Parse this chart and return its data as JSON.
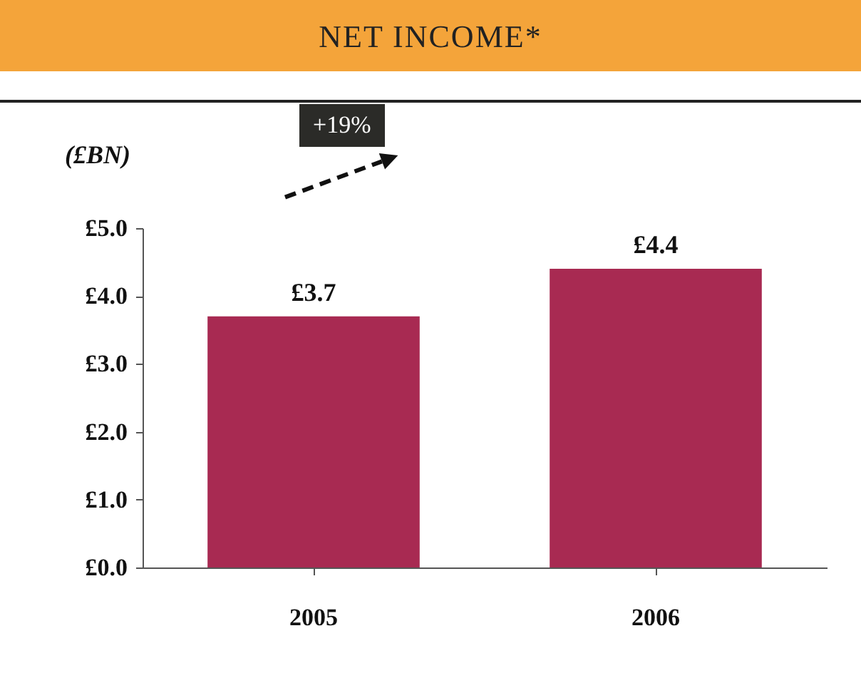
{
  "chart_data": {
    "type": "bar",
    "title": "NET INCOME*",
    "ylabel": "(£BN)",
    "categories": [
      "2005",
      "2006"
    ],
    "series": [
      {
        "color": "#a82a52",
        "values": [
          3.7,
          4.4
        ]
      }
    ],
    "value_labels": [
      "£3.7",
      "£4.4"
    ],
    "annotations": [
      "+19%"
    ],
    "ylim": [
      0,
      5
    ],
    "yticks": [
      {
        "value": 0,
        "label": "£0.0"
      },
      {
        "value": 1,
        "label": "£1.0"
      },
      {
        "value": 2,
        "label": "£2.0"
      },
      {
        "value": 3,
        "label": "£3.0"
      },
      {
        "value": 4,
        "label": "£4.0"
      },
      {
        "value": 5,
        "label": "£5.0"
      }
    ],
    "grid": false
  }
}
